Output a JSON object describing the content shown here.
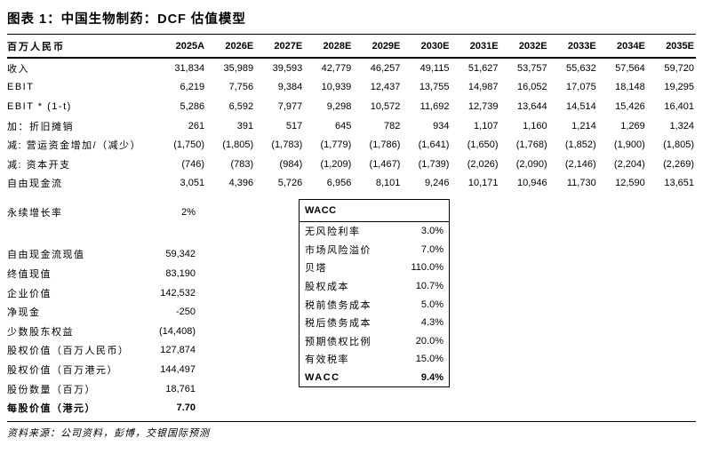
{
  "title": "图表 1：中国生物制药：DCF 估值模型",
  "forecast_table": {
    "unit_label": "百万人民币",
    "years": [
      "2025A",
      "2026E",
      "2027E",
      "2028E",
      "2029E",
      "2030E",
      "2031E",
      "2032E",
      "2033E",
      "2034E",
      "2035E"
    ],
    "rows": [
      {
        "label": "收入",
        "values": [
          "31,834",
          "35,989",
          "39,593",
          "42,779",
          "46,257",
          "49,115",
          "51,627",
          "53,757",
          "55,632",
          "57,564",
          "59,720"
        ]
      },
      {
        "label": "EBIT",
        "values": [
          "6,219",
          "7,756",
          "9,384",
          "10,939",
          "12,437",
          "13,755",
          "14,987",
          "16,052",
          "17,075",
          "18,148",
          "19,295"
        ]
      },
      {
        "label": "EBIT * (1-t)",
        "values": [
          "5,286",
          "6,592",
          "7,977",
          "9,298",
          "10,572",
          "11,692",
          "12,739",
          "13,644",
          "14,514",
          "15,426",
          "16,401"
        ]
      },
      {
        "label": "加：折旧摊销",
        "values": [
          "261",
          "391",
          "517",
          "645",
          "782",
          "934",
          "1,107",
          "1,160",
          "1,214",
          "1,269",
          "1,324"
        ]
      },
      {
        "label": "减: 营运资金增加/（减少）",
        "values": [
          "(1,750)",
          "(1,805)",
          "(1,783)",
          "(1,779)",
          "(1,786)",
          "(1,641)",
          "(1,650)",
          "(1,768)",
          "(1,852)",
          "(1,900)",
          "(1,805)"
        ]
      },
      {
        "label": "减: 资本开支",
        "values": [
          "(746)",
          "(783)",
          "(984)",
          "(1,209)",
          "(1,467)",
          "(1,739)",
          "(2,026)",
          "(2,090)",
          "(2,146)",
          "(2,204)",
          "(2,269)"
        ]
      },
      {
        "label": "自由现金流",
        "values": [
          "3,051",
          "4,396",
          "5,726",
          "6,956",
          "8,101",
          "9,246",
          "10,171",
          "10,946",
          "11,730",
          "12,590",
          "13,651"
        ]
      }
    ]
  },
  "growth_row": {
    "label": "永续增长率",
    "value": "2%"
  },
  "valuation_rows": [
    {
      "label": "自由现金流现值",
      "value": "59,342"
    },
    {
      "label": "终值现值",
      "value": "83,190"
    },
    {
      "label": "企业价值",
      "value": "142,532"
    },
    {
      "label": "净现金",
      "value": "-250"
    },
    {
      "label": "少数股东权益",
      "value": "(14,408)"
    },
    {
      "label": "股权价值（百万人民币）",
      "value": "127,874"
    },
    {
      "label": "股权价值（百万港元）",
      "value": "144,497"
    },
    {
      "label": "股份数量（百万）",
      "value": "18,761"
    }
  ],
  "per_share_row": {
    "label": "每股价值（港元）",
    "value": "7.70"
  },
  "wacc_box": {
    "header": "WACC",
    "rows": [
      {
        "label": "无风险利率",
        "value": "3.0%"
      },
      {
        "label": "市场风险溢价",
        "value": "7.0%"
      },
      {
        "label": "贝塔",
        "value": "110.0%"
      },
      {
        "label": "股权成本",
        "value": "10.7%"
      },
      {
        "label": "税前债务成本",
        "value": "5.0%"
      },
      {
        "label": "税后债务成本",
        "value": "4.3%"
      },
      {
        "label": "预期债权比例",
        "value": "20.0%"
      },
      {
        "label": "有效税率",
        "value": "15.0%"
      }
    ],
    "total_row": {
      "label": "WACC",
      "value": "9.4%"
    }
  },
  "source_note": "资料来源：公司资料，彭博，交银国际预测"
}
